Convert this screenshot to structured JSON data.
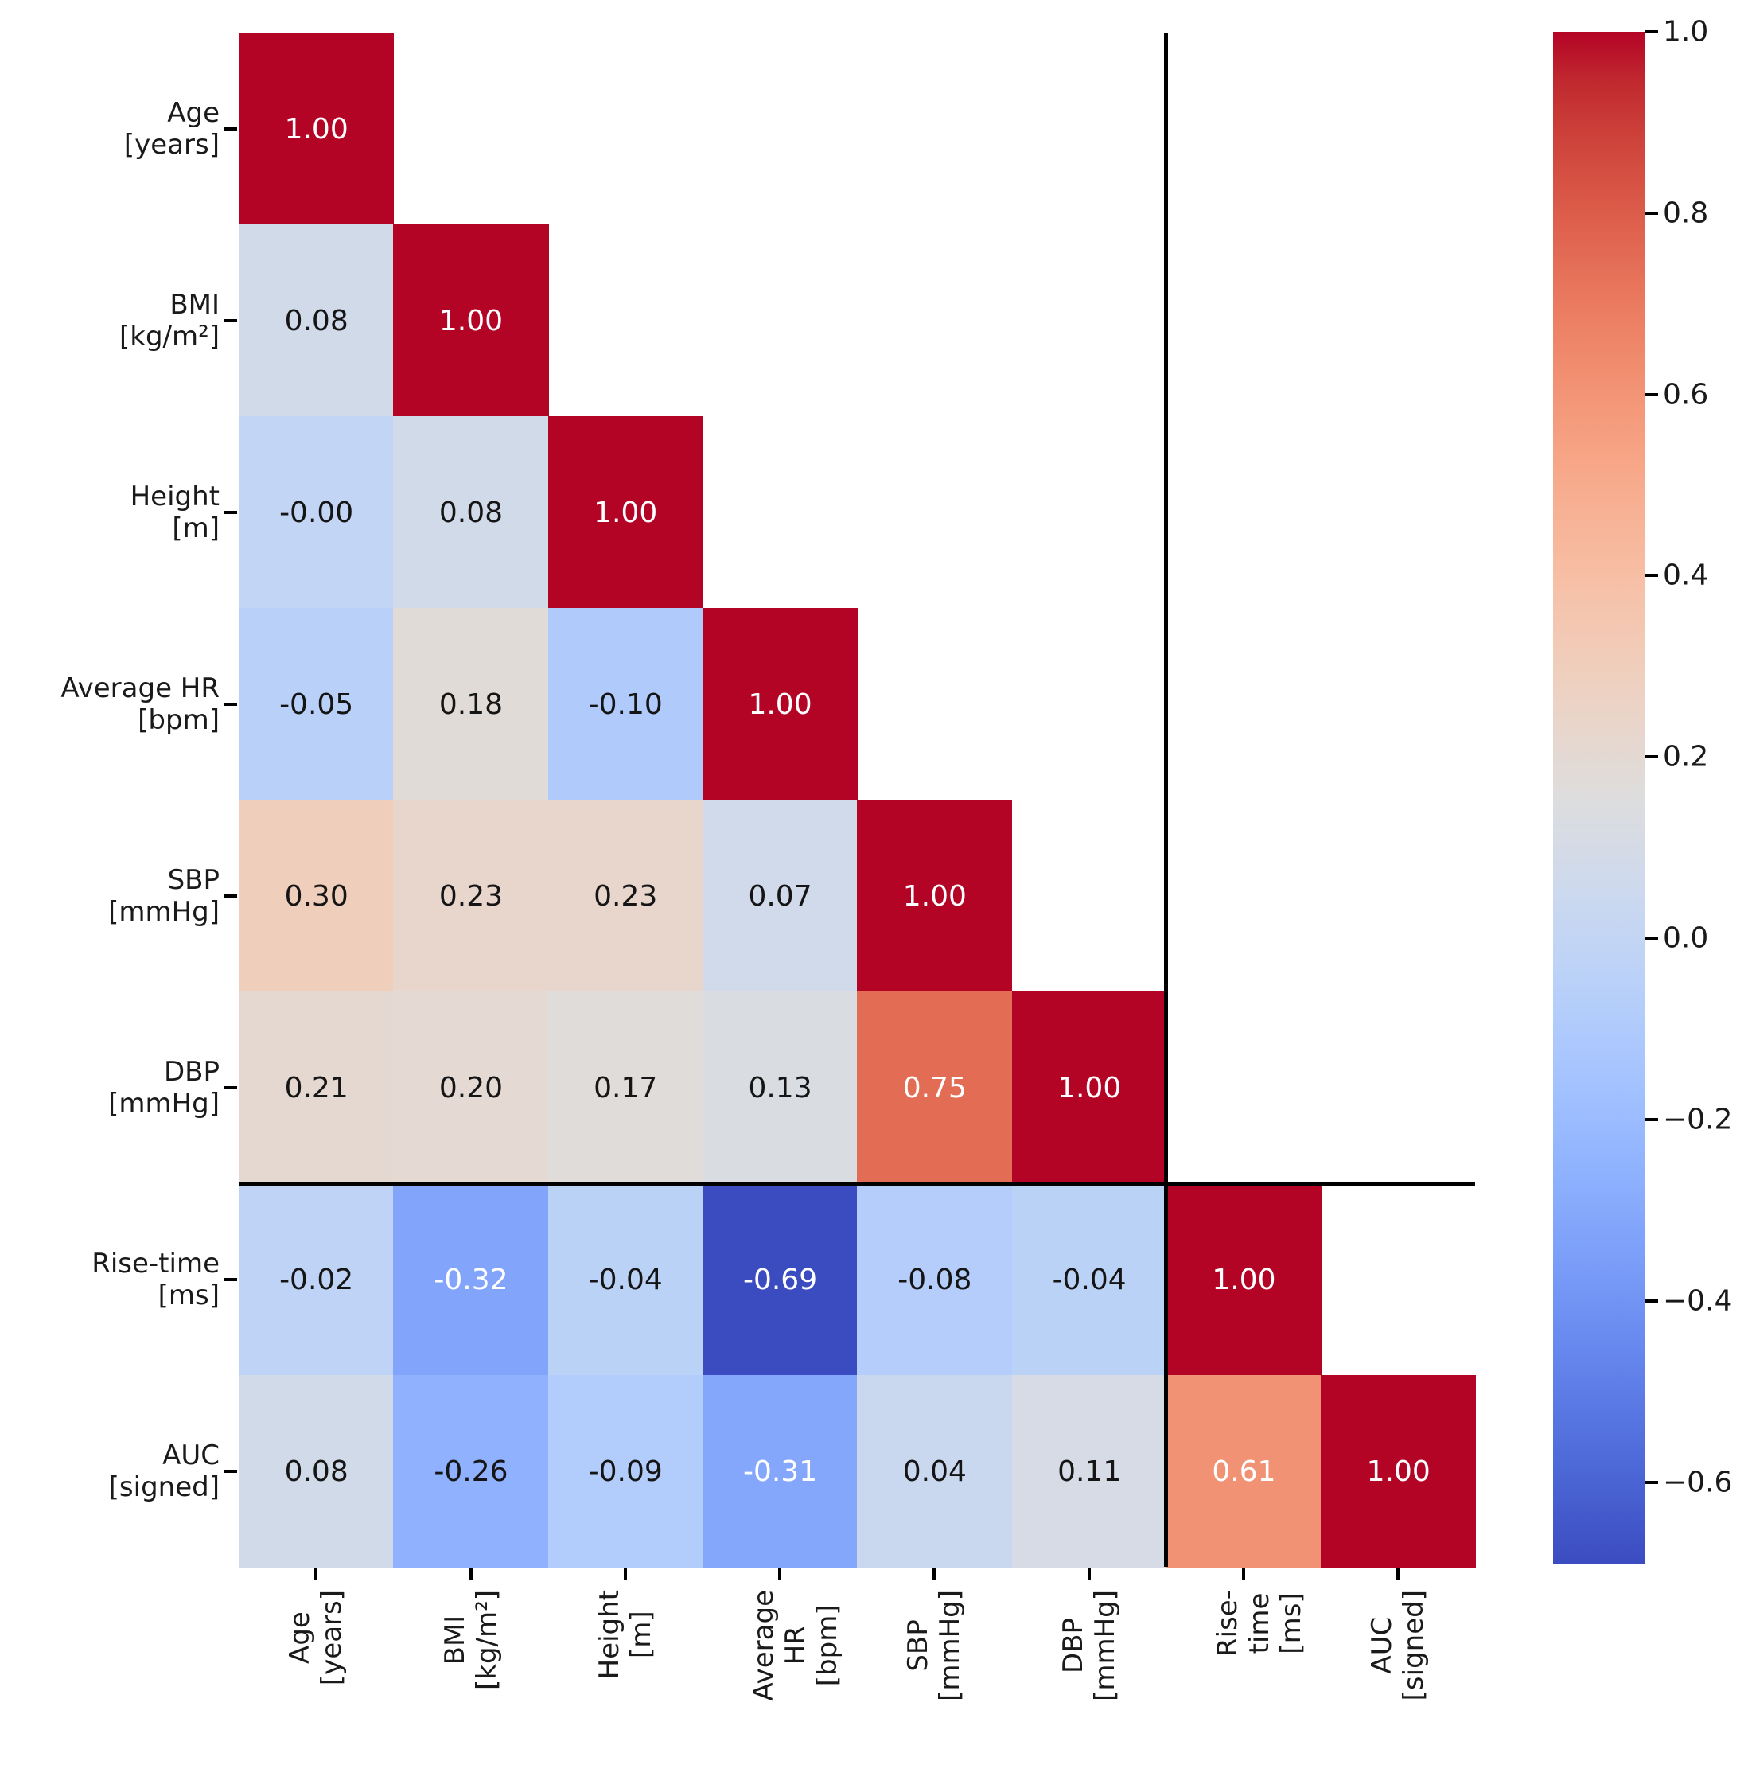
{
  "figure": {
    "background": "#ffffff",
    "title": ""
  },
  "chart_data": {
    "type": "heatmap",
    "title": "",
    "description": "Lower-triangular Pearson correlation matrix with diagonal of 1.00; black divider lines separate the six subject/hemodynamic variables from the two pulse-wave variables (Rise-time, AUC).",
    "categories": [
      "Age [years]",
      "BMI [kg/m²]",
      "Height [m]",
      "Average HR [bpm]",
      "SBP [mmHg]",
      "DBP [mmHg]",
      "Rise-time [ms]",
      "AUC [signed]"
    ],
    "category_labels_multiline": [
      "Age\n[years]",
      "BMI\n[kg/m²]",
      "Height\n[m]",
      "Average HR\n[bpm]",
      "SBP\n[mmHg]",
      "DBP\n[mmHg]",
      "Rise-time\n[ms]",
      "AUC\n[signed]"
    ],
    "values": [
      [
        1.0,
        null,
        null,
        null,
        null,
        null,
        null,
        null
      ],
      [
        0.08,
        1.0,
        null,
        null,
        null,
        null,
        null,
        null
      ],
      [
        -0.0,
        0.08,
        1.0,
        null,
        null,
        null,
        null,
        null
      ],
      [
        -0.05,
        0.18,
        -0.1,
        1.0,
        null,
        null,
        null,
        null
      ],
      [
        0.3,
        0.23,
        0.23,
        0.07,
        1.0,
        null,
        null,
        null
      ],
      [
        0.21,
        0.2,
        0.17,
        0.13,
        0.75,
        1.0,
        null,
        null
      ],
      [
        -0.02,
        -0.32,
        -0.04,
        -0.69,
        -0.08,
        -0.04,
        1.0,
        null
      ],
      [
        0.08,
        -0.26,
        -0.09,
        -0.31,
        0.04,
        0.11,
        0.61,
        1.0
      ]
    ],
    "cell_labels": [
      [
        "1.00",
        null,
        null,
        null,
        null,
        null,
        null,
        null
      ],
      [
        "0.08",
        "1.00",
        null,
        null,
        null,
        null,
        null,
        null
      ],
      [
        "-0.00",
        "0.08",
        "1.00",
        null,
        null,
        null,
        null,
        null
      ],
      [
        "-0.05",
        "0.18",
        "-0.10",
        "1.00",
        null,
        null,
        null,
        null
      ],
      [
        "0.30",
        "0.23",
        "0.23",
        "0.07",
        "1.00",
        null,
        null,
        null
      ],
      [
        "0.21",
        "0.20",
        "0.17",
        "0.13",
        "0.75",
        "1.00",
        null,
        null
      ],
      [
        "-0.02",
        "-0.32",
        "-0.04",
        "-0.69",
        "-0.08",
        "-0.04",
        "1.00",
        null
      ],
      [
        "0.08",
        "-0.26",
        "-0.09",
        "-0.31",
        "0.04",
        "0.11",
        "0.61",
        "1.00"
      ]
    ],
    "group_divider_after": 6,
    "divider_color": "#000000",
    "colormap": {
      "name": "coolwarm",
      "vmin": -0.69,
      "vmax": 1.0,
      "stops": [
        "#3B4CC0",
        "#445ACC",
        "#4D68D7",
        "#5775E1",
        "#6282EA",
        "#6C8EF1",
        "#779AF7",
        "#82A5FB",
        "#8DB0FE",
        "#98B9FF",
        "#A3C2FF",
        "#AEC9FD",
        "#B8D0F9",
        "#C2D5F4",
        "#CCD9EE",
        "#D5DBE6",
        "#DDDDDD",
        "#E5D8D1",
        "#ECD3C5",
        "#F1CCB9",
        "#F5C4AD",
        "#F7BBA0",
        "#F7B194",
        "#F7A687",
        "#F49A7B",
        "#F18D6F",
        "#EC7F63",
        "#E57058",
        "#DE604D",
        "#D55042",
        "#CB3E38",
        "#C0282F",
        "#B40426"
      ]
    },
    "annotation_text_colors": {
      "dark": "#151515",
      "light": "#ffffff"
    },
    "colorbar": {
      "position": "right",
      "ticks": [
        {
          "value": 1.0,
          "label": "1.0"
        },
        {
          "value": 0.8,
          "label": "0.8"
        },
        {
          "value": 0.6,
          "label": "0.6"
        },
        {
          "value": 0.4,
          "label": "0.4"
        },
        {
          "value": 0.2,
          "label": "0.2"
        },
        {
          "value": 0.0,
          "label": "0.0"
        },
        {
          "value": -0.2,
          "label": "−0.2"
        },
        {
          "value": -0.4,
          "label": "−0.4"
        },
        {
          "value": -0.6,
          "label": "−0.6"
        }
      ]
    },
    "axes": {
      "x_tick_rotation": 90,
      "y_tick_rotation": 0,
      "grid": false,
      "xlabel": "",
      "ylabel": ""
    }
  }
}
